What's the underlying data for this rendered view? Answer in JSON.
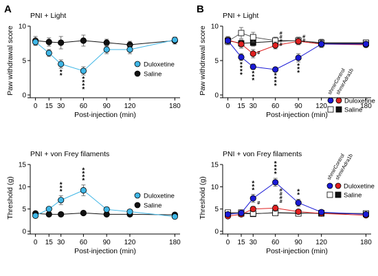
{
  "figure": {
    "panel_labels": [
      "A",
      "B"
    ],
    "legend_a": [
      {
        "label": "Duloxetine",
        "color": "#3fb6e6",
        "marker": "circle"
      },
      {
        "label": "Saline",
        "color": "#111111",
        "marker": "circle"
      }
    ],
    "legend_b": {
      "col_headers": [
        "shmirControl",
        "shmirAdra1b"
      ],
      "rows": [
        {
          "label": "Duloxetine",
          "colors": [
            "#1a1ad6",
            "#e02020"
          ],
          "marker": "circle"
        },
        {
          "label": "Saline",
          "colors": [
            "#ffffff",
            "#111111"
          ],
          "marker": "square"
        }
      ]
    }
  },
  "chart_data": [
    {
      "panel": "A",
      "type": "line",
      "title": "PNI + Light",
      "xlabel": "Post-injection (min)",
      "ylabel": "Paw withdrawal score",
      "x": [
        0,
        15,
        30,
        60,
        90,
        120,
        180
      ],
      "xticks": [
        "0",
        "15",
        "30",
        "60",
        "90",
        "120",
        "180"
      ],
      "ylim": [
        0,
        10
      ],
      "yticks": [
        "0",
        "5",
        "10"
      ],
      "series": [
        {
          "name": "Duloxetine",
          "color": "#3fb6e6",
          "marker": "circle",
          "values": [
            7.7,
            6.1,
            4.5,
            3.5,
            6.6,
            6.6,
            8.0
          ],
          "errors": [
            0.5,
            0.5,
            0.6,
            0.6,
            0.6,
            0.6,
            0.4
          ]
        },
        {
          "name": "Saline",
          "color": "#111111",
          "marker": "circle",
          "values": [
            7.9,
            7.7,
            7.6,
            7.9,
            7.6,
            7.3,
            7.9
          ],
          "errors": [
            0.6,
            0.6,
            0.9,
            0.8,
            0.5,
            0.5,
            0.5
          ]
        }
      ],
      "annotations": [
        {
          "x": 30,
          "text": "**"
        },
        {
          "x": 60,
          "text": "****"
        }
      ]
    },
    {
      "panel": "A",
      "type": "line",
      "title": "PNI + von Frey filaments",
      "xlabel": "Post-injection (min)",
      "ylabel": "Threshold (g)",
      "x": [
        0,
        15,
        30,
        60,
        90,
        120,
        180
      ],
      "xticks": [
        "0",
        "15",
        "30",
        "60",
        "90",
        "120",
        "180"
      ],
      "ylim": [
        0,
        15
      ],
      "yticks": [
        "0",
        "5",
        "10",
        "15"
      ],
      "series": [
        {
          "name": "Duloxetine",
          "color": "#3fb6e6",
          "marker": "circle",
          "values": [
            3.5,
            5.0,
            7.0,
            9.2,
            4.9,
            4.4,
            3.3
          ],
          "errors": [
            0.4,
            0.4,
            1.0,
            1.2,
            0.5,
            0.4,
            0.3
          ]
        },
        {
          "name": "Saline",
          "color": "#111111",
          "marker": "circle",
          "values": [
            4.0,
            3.8,
            3.8,
            4.1,
            3.8,
            3.8,
            3.7
          ],
          "errors": [
            0.3,
            0.3,
            0.3,
            0.3,
            0.3,
            0.3,
            0.3
          ]
        }
      ],
      "annotations": [
        {
          "x": 30,
          "text": "***"
        },
        {
          "x": 60,
          "text": "****"
        }
      ]
    },
    {
      "panel": "B",
      "type": "line",
      "title": "PNI + Light",
      "xlabel": "Post-injection (min)",
      "ylabel": "Paw withdrawal score",
      "x": [
        0,
        15,
        30,
        60,
        90,
        120,
        180
      ],
      "xticks": [
        "0",
        "15",
        "30",
        "60",
        "90",
        "120",
        "180"
      ],
      "ylim": [
        0,
        10
      ],
      "yticks": [
        "0",
        "5",
        "10"
      ],
      "series": [
        {
          "name": "shmirControl Duloxetine",
          "color": "#1a1ad6",
          "marker": "circle",
          "values": [
            7.9,
            5.5,
            4.1,
            3.7,
            5.4,
            7.4,
            7.4
          ],
          "errors": [
            0.5,
            0.5,
            0.4,
            0.3,
            0.6,
            0.5,
            0.4
          ]
        },
        {
          "name": "shmirAdra1b Duloxetine",
          "color": "#e02020",
          "marker": "circle",
          "values": [
            8.0,
            7.4,
            6.0,
            7.2,
            7.8,
            7.4,
            7.3
          ],
          "errors": [
            0.5,
            0.6,
            0.6,
            0.5,
            0.5,
            0.5,
            0.4
          ]
        },
        {
          "name": "shmirControl Saline",
          "color": "#ffffff",
          "marker": "square",
          "values": [
            7.8,
            9.0,
            8.4,
            7.9,
            7.9,
            7.6,
            7.6
          ],
          "errors": [
            0.5,
            0.8,
            0.7,
            0.5,
            0.5,
            0.5,
            0.4
          ]
        },
        {
          "name": "shmirAdra1b Saline",
          "color": "#111111",
          "marker": "square",
          "values": [
            7.9,
            7.5,
            7.6,
            7.8,
            7.9,
            7.5,
            7.5
          ],
          "errors": [
            0.5,
            0.5,
            0.5,
            0.5,
            0.5,
            0.5,
            0.4
          ]
        }
      ],
      "annotations": [
        {
          "x": 15,
          "text": "****"
        },
        {
          "x": 30,
          "text": "***"
        },
        {
          "x": 60,
          "text": "****"
        },
        {
          "x": 90,
          "text": "***"
        },
        {
          "x": 30,
          "text": "#",
          "group": "hash"
        },
        {
          "x": 60,
          "text": "####",
          "group": "hash"
        },
        {
          "x": 90,
          "text": "##",
          "group": "hash"
        }
      ]
    },
    {
      "panel": "B",
      "type": "line",
      "title": "PNI + von Frey filaments",
      "xlabel": "Post-injection (min)",
      "ylabel": "Threshold (g)",
      "x": [
        0,
        15,
        30,
        60,
        90,
        120,
        180
      ],
      "xticks": [
        "0",
        "15",
        "30",
        "60",
        "90",
        "120",
        "180"
      ],
      "ylim": [
        0,
        15
      ],
      "yticks": [
        "0",
        "5",
        "10",
        "15"
      ],
      "series": [
        {
          "name": "shmirControl Duloxetine",
          "color": "#1a1ad6",
          "marker": "circle",
          "values": [
            3.8,
            4.1,
            7.4,
            11.0,
            6.4,
            4.3,
            3.8
          ],
          "errors": [
            0.4,
            0.4,
            0.9,
            0.9,
            0.8,
            0.5,
            0.3
          ]
        },
        {
          "name": "shmirAdra1b Duloxetine",
          "color": "#e02020",
          "marker": "circle",
          "values": [
            3.4,
            3.8,
            5.0,
            5.2,
            4.4,
            4.0,
            3.6
          ],
          "errors": [
            0.4,
            0.4,
            0.6,
            0.7,
            0.5,
            0.4,
            0.3
          ]
        },
        {
          "name": "shmirControl Saline",
          "color": "#ffffff",
          "marker": "square",
          "values": [
            4.2,
            4.2,
            4.0,
            4.1,
            4.0,
            4.1,
            4.0
          ],
          "errors": [
            0.3,
            0.3,
            0.3,
            0.3,
            0.3,
            0.3,
            0.3
          ]
        },
        {
          "name": "shmirAdra1b Saline",
          "color": "#111111",
          "marker": "square",
          "values": [
            4.0,
            4.0,
            3.9,
            4.2,
            4.1,
            4.0,
            3.9
          ],
          "errors": [
            0.3,
            0.3,
            0.3,
            0.3,
            0.3,
            0.3,
            0.3
          ]
        }
      ],
      "annotations": [
        {
          "x": 30,
          "text": "***"
        },
        {
          "x": 60,
          "text": "****"
        },
        {
          "x": 90,
          "text": "**"
        },
        {
          "x": 30,
          "text": "#",
          "group": "hash"
        },
        {
          "x": 60,
          "text": "####",
          "group": "hash"
        }
      ]
    }
  ]
}
